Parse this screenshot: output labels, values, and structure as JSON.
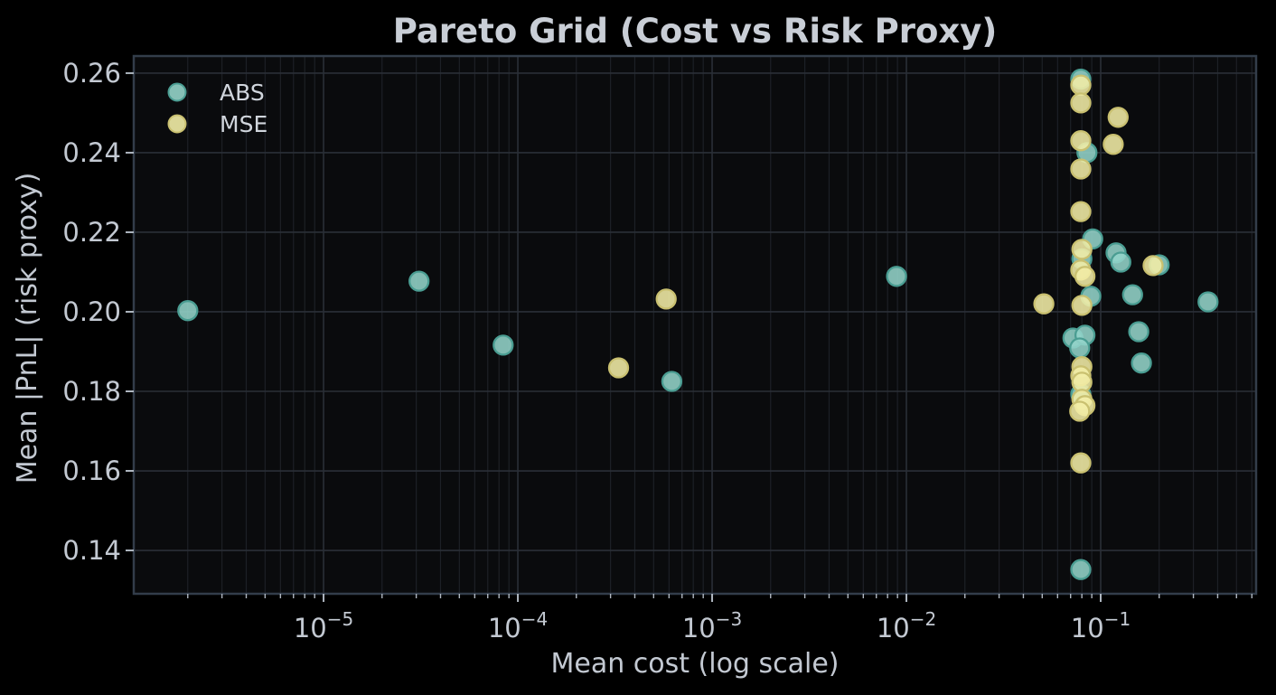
{
  "chart_data": {
    "type": "scatter",
    "title": "Pareto Grid (Cost vs Risk Proxy)",
    "xlabel": "Mean cost (log scale)",
    "ylabel": "Mean |PnL| (risk proxy)",
    "x_scale": "log",
    "xlim_log10": [
      -5.977,
      -0.2
    ],
    "ylim": [
      0.1291,
      0.2643
    ],
    "yticks": [
      0.14,
      0.16,
      0.18,
      0.2,
      0.22,
      0.24,
      0.26
    ],
    "xtick_exponents": [
      -5,
      -4,
      -3,
      -2,
      -1
    ],
    "grid": "both",
    "legend_position": "upper-left",
    "series": [
      {
        "name": "ABS",
        "color": "#93d4c9",
        "edge_color": "#4a9d92",
        "points": [
          [
            2e-06,
            0.2003
          ],
          [
            3.1e-05,
            0.2077
          ],
          [
            8.4e-05,
            0.1916
          ],
          [
            0.00062,
            0.1825
          ],
          [
            0.0089,
            0.2089
          ],
          [
            0.079,
            0.2585
          ],
          [
            0.085,
            0.24
          ],
          [
            0.091,
            0.2183
          ],
          [
            0.08,
            0.2133
          ],
          [
            0.12,
            0.2148
          ],
          [
            0.127,
            0.2125
          ],
          [
            0.2,
            0.2118
          ],
          [
            0.089,
            0.2039
          ],
          [
            0.146,
            0.2043
          ],
          [
            0.357,
            0.2025
          ],
          [
            0.072,
            0.1934
          ],
          [
            0.083,
            0.1941
          ],
          [
            0.078,
            0.1909
          ],
          [
            0.157,
            0.195
          ],
          [
            0.162,
            0.1871
          ],
          [
            0.079,
            0.1793
          ],
          [
            0.079,
            0.1352
          ]
        ]
      },
      {
        "name": "MSE",
        "color": "#f2eda6",
        "edge_color": "#c9c070",
        "points": [
          [
            0.00033,
            0.1859
          ],
          [
            0.00058,
            0.2032
          ],
          [
            0.051,
            0.202
          ],
          [
            0.079,
            0.257
          ],
          [
            0.079,
            0.2525
          ],
          [
            0.123,
            0.2489
          ],
          [
            0.116,
            0.2421
          ],
          [
            0.079,
            0.243
          ],
          [
            0.079,
            0.2359
          ],
          [
            0.079,
            0.2252
          ],
          [
            0.08,
            0.2157
          ],
          [
            0.186,
            0.2116
          ],
          [
            0.079,
            0.2105
          ],
          [
            0.083,
            0.2089
          ],
          [
            0.08,
            0.2016
          ],
          [
            0.08,
            0.1862
          ],
          [
            0.079,
            0.1839
          ],
          [
            0.08,
            0.1823
          ],
          [
            0.08,
            0.178
          ],
          [
            0.083,
            0.1764
          ],
          [
            0.078,
            0.175
          ],
          [
            0.079,
            0.162
          ]
        ]
      }
    ]
  },
  "legend": {
    "entries": [
      {
        "label": "ABS"
      },
      {
        "label": "MSE"
      }
    ]
  },
  "colors": {
    "figure_bg": "#000000",
    "plot_bg": "#0a0b0d",
    "spine": "#333d4a",
    "grid_major": "#2a2f37",
    "grid_minor": "#1d2026",
    "tick_mark": "#aeb6c0",
    "text": "#c3c9d2"
  }
}
